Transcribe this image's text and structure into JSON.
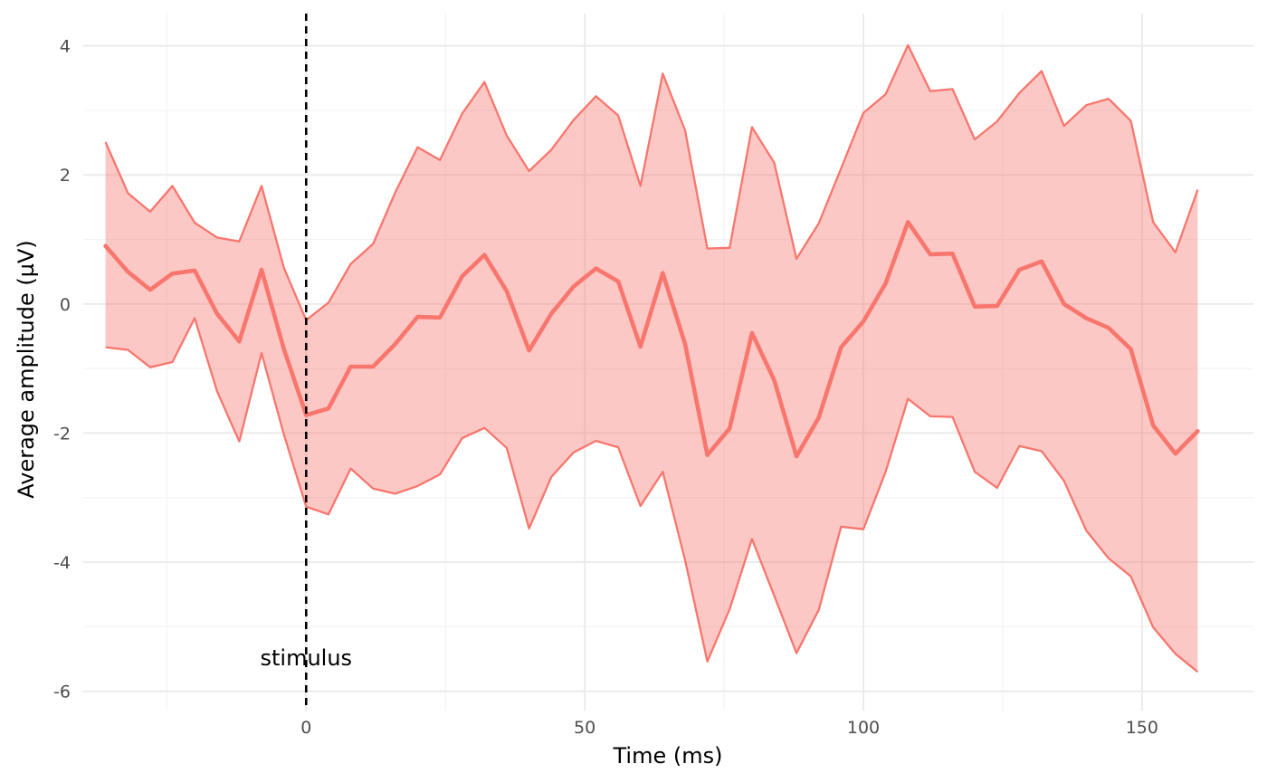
{
  "chart_data": {
    "type": "line",
    "title": "",
    "xlabel": "Time (ms)",
    "ylabel": "Average amplitude (µV)",
    "xlim": [
      -40,
      170
    ],
    "ylim": [
      -6.3,
      4.5
    ],
    "x_ticks": [
      0,
      50,
      100,
      150
    ],
    "y_ticks": [
      -6,
      -4,
      -2,
      0,
      2,
      4
    ],
    "x_tick_labels": [
      "0",
      "50",
      "100",
      "150"
    ],
    "y_tick_labels": [
      "-6",
      "-4",
      "-2",
      "0",
      "2",
      "4"
    ],
    "grid": true,
    "legend": "none",
    "colors": {
      "line": "#F8766D",
      "ribbon": "#F8766D",
      "stimulus_line": "#000000"
    },
    "annotation": {
      "label": "stimulus",
      "x": 0
    },
    "x": [
      -36,
      -32,
      -28,
      -24,
      -20,
      -16,
      -12,
      -8,
      -4,
      0,
      4,
      8,
      12,
      16,
      20,
      24,
      28,
      32,
      36,
      40,
      44,
      48,
      52,
      56,
      60,
      64,
      68,
      72,
      76,
      80,
      84,
      88,
      92,
      96,
      100,
      104,
      108,
      112,
      116,
      120,
      124,
      128,
      132,
      136,
      140,
      144,
      148,
      152,
      156,
      160
    ],
    "series": [
      {
        "values": [
          0.9,
          0.5,
          0.22,
          0.47,
          0.52,
          -0.15,
          -0.58,
          0.53,
          -0.7,
          -1.72,
          -1.62,
          -0.97,
          -0.97,
          -0.62,
          -0.2,
          -0.21,
          0.43,
          0.76,
          0.2,
          -0.72,
          -0.15,
          0.27,
          0.55,
          0.35,
          -0.66,
          0.48,
          -0.62,
          -2.34,
          -1.93,
          -0.45,
          -1.18,
          -2.36,
          -1.76,
          -0.67,
          -0.27,
          0.32,
          1.27,
          0.77,
          0.78,
          -0.04,
          -0.03,
          0.53,
          0.66,
          0.0,
          -0.22,
          -0.37,
          -0.7,
          -1.88,
          -2.32,
          -1.97
        ],
        "lower": [
          -0.67,
          -0.71,
          -0.98,
          -0.9,
          -0.22,
          -1.35,
          -2.13,
          -0.76,
          -2.02,
          -3.14,
          -3.26,
          -2.55,
          -2.86,
          -2.94,
          -2.82,
          -2.64,
          -2.08,
          -1.92,
          -2.23,
          -3.48,
          -2.68,
          -2.3,
          -2.12,
          -2.22,
          -3.13,
          -2.6,
          -3.97,
          -5.54,
          -4.73,
          -3.64,
          -4.52,
          -5.41,
          -4.74,
          -3.45,
          -3.49,
          -2.6,
          -1.47,
          -1.74,
          -1.75,
          -2.6,
          -2.85,
          -2.2,
          -2.28,
          -2.74,
          -3.51,
          -3.94,
          -4.22,
          -5.01,
          -5.42,
          -5.7
        ],
        "upper": [
          2.51,
          1.72,
          1.43,
          1.83,
          1.26,
          1.03,
          0.97,
          1.83,
          0.56,
          -0.25,
          0.02,
          0.62,
          0.93,
          1.73,
          2.43,
          2.23,
          2.95,
          3.44,
          2.61,
          2.06,
          2.39,
          2.85,
          3.22,
          2.92,
          1.83,
          3.57,
          2.69,
          0.86,
          0.87,
          2.74,
          2.19,
          0.7,
          1.25,
          2.1,
          2.96,
          3.25,
          4.01,
          3.3,
          3.33,
          2.55,
          2.83,
          3.27,
          3.61,
          2.76,
          3.08,
          3.18,
          2.84,
          1.27,
          0.8,
          1.77
        ]
      }
    ]
  }
}
